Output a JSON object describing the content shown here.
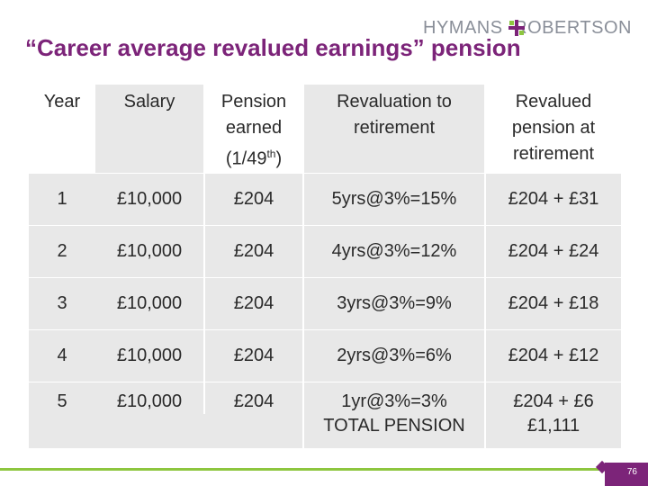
{
  "logo": {
    "left": "HYMANS",
    "right": "ROBERTSON"
  },
  "title": "“Career average revalued earnings” pension",
  "table": {
    "headers": {
      "year": "Year",
      "salary": "Salary",
      "pension_line1": "Pension",
      "pension_line2": "earned",
      "pension_line3_base": "(1/49",
      "pension_line3_sup": "th",
      "pension_line3_end": ")",
      "reval_line1": "Revaluation to",
      "reval_line2": "retirement",
      "revalued_line1": "Revalued",
      "revalued_line2": "pension at",
      "revalued_line3": "retirement"
    },
    "rows": [
      {
        "year": "1",
        "salary": "£10,000",
        "pension": "£204",
        "revaluation": "5yrs@3%=15%",
        "revalued": "£204 + £31"
      },
      {
        "year": "2",
        "salary": "£10,000",
        "pension": "£204",
        "revaluation": "4yrs@3%=12%",
        "revalued": "£204 + £24"
      },
      {
        "year": "3",
        "salary": "£10,000",
        "pension": "£204",
        "revaluation": "3yrs@3%=9%",
        "revalued": "£204 + £18"
      },
      {
        "year": "4",
        "salary": "£10,000",
        "pension": "£204",
        "revaluation": "2yrs@3%=6%",
        "revalued": "£204 + £12"
      },
      {
        "year": "5",
        "salary": "£10,000",
        "pension": "£204",
        "revaluation": "1yr@3%=3%",
        "revalued": "£204 + £6"
      }
    ],
    "total_label": "TOTAL PENSION",
    "total_value": "£1,111"
  },
  "page_number": "76",
  "colors": {
    "title": "#7c2479",
    "accent_green": "#8dc63f",
    "table_shade": "#e8e8e8"
  }
}
